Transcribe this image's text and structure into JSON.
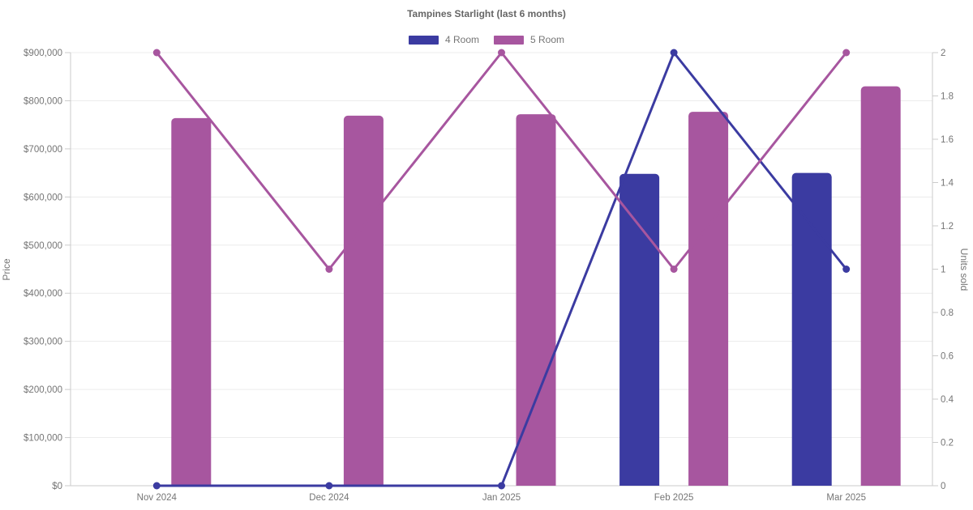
{
  "title": "Tampines Starlight (last 6 months)",
  "legend": [
    {
      "label": "4 Room",
      "color": "#3b3ba1"
    },
    {
      "label": "5 Room",
      "color": "#a7569f"
    }
  ],
  "chart_data": {
    "type": "combo-bar-line",
    "title": "Tampines Starlight (last 6 months)",
    "legend_position": "top",
    "grid": "horizontal",
    "categories": [
      "Nov 2024",
      "Dec 2024",
      "Jan 2025",
      "Feb 2025",
      "Mar 2025"
    ],
    "series": [
      {
        "name": "4 Room",
        "type": "bar",
        "axis": "left",
        "color": "#3b3ba1",
        "values": [
          null,
          null,
          null,
          648000,
          650000
        ]
      },
      {
        "name": "5 Room",
        "type": "bar",
        "axis": "left",
        "color": "#a7569f",
        "values": [
          764000,
          769000,
          772000,
          777000,
          830000
        ]
      },
      {
        "name": "4 Room",
        "type": "line",
        "axis": "right",
        "color": "#3b3ba1",
        "values": [
          0,
          0,
          0,
          2,
          1
        ]
      },
      {
        "name": "5 Room",
        "type": "line",
        "axis": "right",
        "color": "#a7569f",
        "values": [
          2,
          1,
          2,
          1,
          2
        ]
      }
    ],
    "left_axis": {
      "label": "Price",
      "min": 0,
      "max": 900000,
      "ticks": [
        {
          "v": 0,
          "label": "$0"
        },
        {
          "v": 100000,
          "label": "$100,000"
        },
        {
          "v": 200000,
          "label": "$200,000"
        },
        {
          "v": 300000,
          "label": "$300,000"
        },
        {
          "v": 400000,
          "label": "$400,000"
        },
        {
          "v": 500000,
          "label": "$500,000"
        },
        {
          "v": 600000,
          "label": "$600,000"
        },
        {
          "v": 700000,
          "label": "$700,000"
        },
        {
          "v": 800000,
          "label": "$800,000"
        },
        {
          "v": 900000,
          "label": "$900,000"
        }
      ]
    },
    "right_axis": {
      "label": "Units sold",
      "min": 0,
      "max": 2,
      "ticks": [
        {
          "v": 0,
          "label": "0"
        },
        {
          "v": 0.2,
          "label": "0.2"
        },
        {
          "v": 0.4,
          "label": "0.4"
        },
        {
          "v": 0.6,
          "label": "0.6"
        },
        {
          "v": 0.8,
          "label": "0.8"
        },
        {
          "v": 1,
          "label": "1"
        },
        {
          "v": 1.2,
          "label": "1.2"
        },
        {
          "v": 1.4,
          "label": "1.4"
        },
        {
          "v": 1.6,
          "label": "1.6"
        },
        {
          "v": 1.8,
          "label": "1.8"
        },
        {
          "v": 2,
          "label": "2"
        }
      ]
    }
  },
  "colors": {
    "grid": "#ececec",
    "axis": "#cbcbcb",
    "tick_text": "#757575",
    "title_text": "#666666"
  }
}
